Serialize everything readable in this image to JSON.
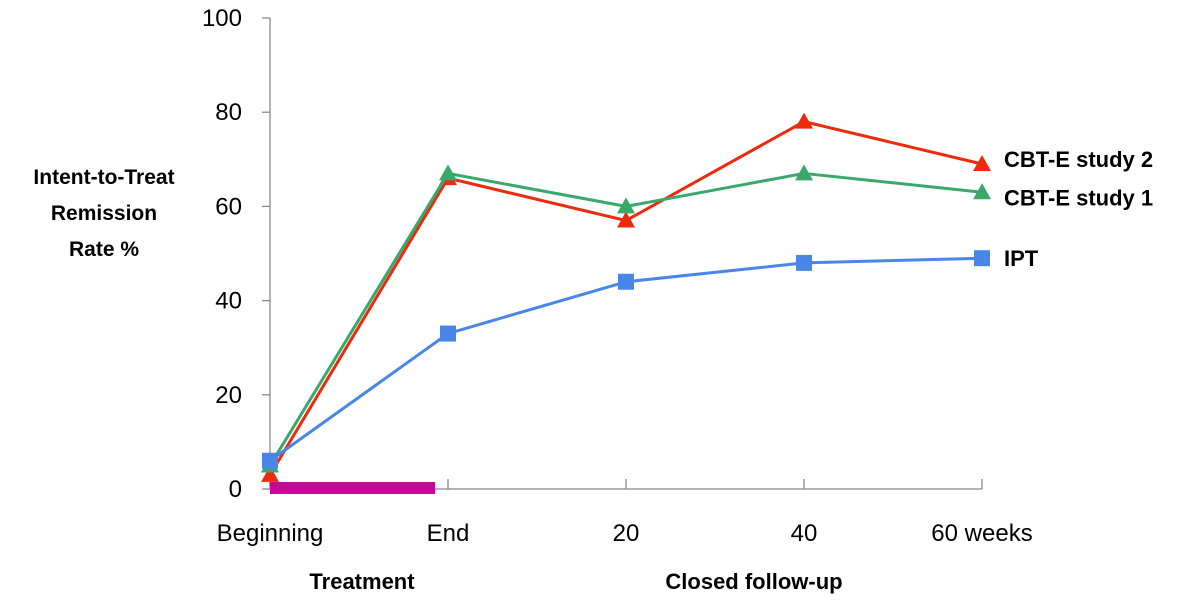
{
  "chart_data": {
    "type": "line",
    "categories": [
      "Beginning",
      "End",
      "20",
      "40",
      "60 weeks"
    ],
    "ylabel_lines": [
      "Intent-to-Treat",
      "Remission",
      "Rate %"
    ],
    "yticks": [
      "0",
      "20",
      "40",
      "60",
      "80",
      "100"
    ],
    "ylim": [
      0,
      100
    ],
    "grid": false,
    "legend": "inline-right",
    "series": [
      {
        "name": "CBT-E study 2",
        "color": "#ee2a0c",
        "marker": "triangle",
        "values": [
          3,
          66,
          57,
          78,
          69
        ]
      },
      {
        "name": "CBT-E study 1",
        "color": "#3aa86b",
        "marker": "triangle",
        "values": [
          5,
          67,
          60,
          67,
          63
        ]
      },
      {
        "name": "IPT",
        "color": "#4a86e8",
        "marker": "square",
        "values": [
          6,
          33,
          44,
          48,
          49
        ]
      }
    ],
    "group_labels": {
      "treatment": "Treatment",
      "followup": "Closed follow-up"
    },
    "treatment_bar": {
      "from": "Beginning",
      "to": "End",
      "color": "#c4099a"
    }
  }
}
